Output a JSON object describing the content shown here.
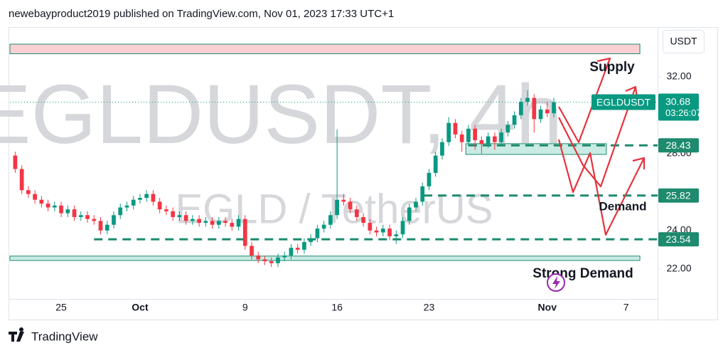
{
  "header": "newebayproduct2019 published on TradingView.com, Nov 01, 2023 17:33 UTC+1",
  "footer": "TradingView",
  "chart_data": {
    "type": "candlestick",
    "symbol_watermark": "EGLDUSDT, 4h",
    "pair_watermark": "EGLD / TetherUS",
    "currency": "USDT",
    "annotations": [
      "Supply",
      "Demand",
      "Strong Demand"
    ],
    "xlim": [
      21.1,
      70.4
    ],
    "xticks": [
      {
        "value": 25,
        "label": "25"
      },
      {
        "value": 31,
        "label": "Oct"
      },
      {
        "value": 39,
        "label": "9"
      },
      {
        "value": 46,
        "label": "16"
      },
      {
        "value": 53,
        "label": "23"
      },
      {
        "value": 62,
        "label": "Nov"
      },
      {
        "value": 68,
        "label": "7"
      }
    ],
    "ylim": [
      20.44,
      34.59
    ],
    "yticks": [
      {
        "value": 22,
        "label": "22.00"
      },
      {
        "value": 24,
        "label": "24.00"
      },
      {
        "value": 28,
        "label": "28.00"
      },
      {
        "value": 32,
        "label": "32.00"
      }
    ],
    "colors": {
      "up": "#089981",
      "down": "#f23645"
    },
    "x": [
      21.5,
      22,
      22.5,
      23,
      23.5,
      24,
      24.5,
      25,
      25.5,
      26,
      26.5,
      27,
      27.5,
      28,
      28.5,
      29,
      29.5,
      30,
      30.5,
      31,
      31.5,
      32,
      32.5,
      33,
      33.5,
      34,
      34.5,
      35,
      35.5,
      36,
      36.5,
      37,
      37.5,
      38,
      38.5,
      39,
      39.5,
      40,
      40.5,
      41,
      41.5,
      42,
      42.5,
      43,
      43.5,
      44,
      44.5,
      45,
      45.5,
      46,
      46.5,
      47,
      47.5,
      48,
      48.5,
      49,
      49.5,
      50,
      50.5,
      51,
      51.5,
      52,
      52.5,
      53,
      53.5,
      54,
      54.5,
      55,
      55.5,
      56,
      56.5,
      57,
      57.5,
      58,
      58.5,
      59,
      59.5,
      60,
      60.5,
      61,
      61.5,
      62,
      62.5
    ],
    "open": [
      27.9,
      27.2,
      26.1,
      25.9,
      25.6,
      25.4,
      25.2,
      25.3,
      24.9,
      25.1,
      24.7,
      24.8,
      24.6,
      24.5,
      24.0,
      24.3,
      24.8,
      25.2,
      25.3,
      25.6,
      25.7,
      25.9,
      25.5,
      25.1,
      25.0,
      24.7,
      24.8,
      24.5,
      24.6,
      24.4,
      24.5,
      24.3,
      24.5,
      24.4,
      24.2,
      24.6,
      23.2,
      22.7,
      22.5,
      22.4,
      22.3,
      22.6,
      22.7,
      23.1,
      23.0,
      23.4,
      23.6,
      24.1,
      24.3,
      24.8,
      25.6,
      25.5,
      25.1,
      24.7,
      24.4,
      24.0,
      23.9,
      24.1,
      23.7,
      23.8,
      24.5,
      25.2,
      25.5,
      26.3,
      27.0,
      27.9,
      28.6,
      29.6,
      29.0,
      28.6,
      29.3,
      28.7,
      28.5,
      28.9,
      28.6,
      29.1,
      29.5,
      30.0,
      30.7,
      30.9,
      29.8,
      30.3,
      30.1
    ],
    "high": [
      28.1,
      27.4,
      26.3,
      26.1,
      25.8,
      25.6,
      25.5,
      25.5,
      25.3,
      25.3,
      25.0,
      25.0,
      24.8,
      24.7,
      24.5,
      25.0,
      25.4,
      25.5,
      25.8,
      25.9,
      26.1,
      26.1,
      25.7,
      25.3,
      25.2,
      25.0,
      25.0,
      24.8,
      24.8,
      24.7,
      24.7,
      24.7,
      24.7,
      24.6,
      24.8,
      24.8,
      23.4,
      22.9,
      22.7,
      22.6,
      22.8,
      22.9,
      23.3,
      23.3,
      23.6,
      23.8,
      24.3,
      24.5,
      25.0,
      29.26,
      25.9,
      25.7,
      25.3,
      24.9,
      24.6,
      24.2,
      24.3,
      24.3,
      24.0,
      24.7,
      25.4,
      25.7,
      26.5,
      27.2,
      28.1,
      28.8,
      29.9,
      29.8,
      29.2,
      29.5,
      29.5,
      28.9,
      29.1,
      29.1,
      29.3,
      29.7,
      30.2,
      30.9,
      31.3,
      31.1,
      30.5,
      30.7,
      30.9
    ],
    "low": [
      27.0,
      25.9,
      25.7,
      25.4,
      25.2,
      25.0,
      25.0,
      24.7,
      24.7,
      24.5,
      24.5,
      24.4,
      24.3,
      23.8,
      23.8,
      24.1,
      24.6,
      25.0,
      25.1,
      25.4,
      25.5,
      25.3,
      24.9,
      24.8,
      24.5,
      24.5,
      24.3,
      24.3,
      24.2,
      24.2,
      24.1,
      24.1,
      24.2,
      24.0,
      24.0,
      23.0,
      22.5,
      22.3,
      22.2,
      22.1,
      22.1,
      22.4,
      22.5,
      22.8,
      22.8,
      23.2,
      23.4,
      23.9,
      24.1,
      24.6,
      25.3,
      24.9,
      24.5,
      24.2,
      23.8,
      23.7,
      23.7,
      23.5,
      23.3,
      23.6,
      24.3,
      25.0,
      25.3,
      26.1,
      26.8,
      27.7,
      28.4,
      28.8,
      28.1,
      28.4,
      28.2,
      28.0,
      28.3,
      28.2,
      28.4,
      28.9,
      29.3,
      29.8,
      30.5,
      29.1,
      29.6,
      29.9,
      29.9
    ],
    "close": [
      27.2,
      26.1,
      25.9,
      25.6,
      25.4,
      25.2,
      25.3,
      24.9,
      25.1,
      24.7,
      24.8,
      24.6,
      24.5,
      24.0,
      24.3,
      24.8,
      25.2,
      25.3,
      25.6,
      25.7,
      25.9,
      25.5,
      25.1,
      25.0,
      24.7,
      24.8,
      24.5,
      24.6,
      24.4,
      24.5,
      24.3,
      24.5,
      24.4,
      24.2,
      24.6,
      23.2,
      22.7,
      22.5,
      22.4,
      22.3,
      22.6,
      22.7,
      23.1,
      23.0,
      23.4,
      23.6,
      24.1,
      24.3,
      24.8,
      25.6,
      25.5,
      25.1,
      24.7,
      24.4,
      24.0,
      23.9,
      24.1,
      23.7,
      23.8,
      24.5,
      25.2,
      25.5,
      26.3,
      27.0,
      27.9,
      28.6,
      29.6,
      29.0,
      28.6,
      29.3,
      28.7,
      28.5,
      28.9,
      28.6,
      29.1,
      29.5,
      30.0,
      30.7,
      30.9,
      29.8,
      30.3,
      30.1,
      30.68
    ],
    "last_price": {
      "name": "EGLDUSDT",
      "value": 30.68,
      "countdown": "03:26:07",
      "color": "#089981"
    },
    "levels": [
      {
        "value": 28.43,
        "start": 56
      },
      {
        "value": 25.82,
        "start": 52.6
      },
      {
        "value": 23.54,
        "start": 27.5
      }
    ],
    "level_color": "#1e8a6e",
    "zones": [
      {
        "low": 33.2,
        "high": 33.7,
        "start": 21.1,
        "end": 69.05,
        "fill": "#f9d0d4",
        "stroke": "#1e8a6e"
      },
      {
        "low": 27.96,
        "high": 28.52,
        "start": 55.8,
        "end": 66.5,
        "fill": "#c9ebe3",
        "stroke": "#1e8a6e"
      },
      {
        "low": 22.44,
        "high": 22.67,
        "start": 21.1,
        "end": 69.05,
        "fill": "#c9ebe3",
        "stroke": "#1e8a6e"
      }
    ]
  }
}
